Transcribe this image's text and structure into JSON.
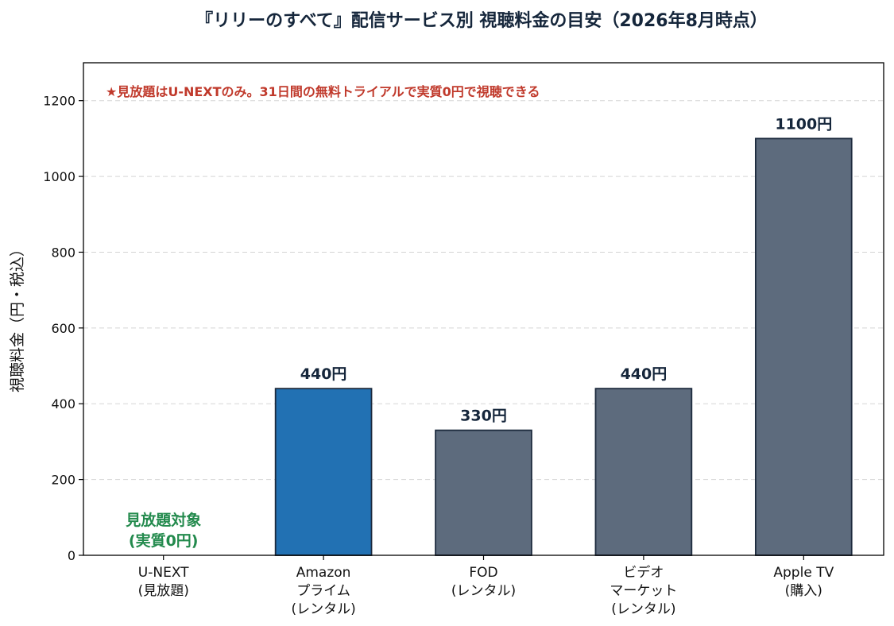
{
  "chart_data": {
    "type": "bar",
    "title": "『リリーのすべて』配信サービス別 視聴料金の目安（2026年8月時点）",
    "ylabel": "視聴料金（円・税込）",
    "xlabel": "",
    "ylim": [
      0,
      1300
    ],
    "yticks": [
      0,
      200,
      400,
      600,
      800,
      1000,
      1200
    ],
    "grid": "y-dashed",
    "note": "★見放題はU-NEXTのみ。31日間の無料トライアルで実質0円で視聴できる",
    "categories": [
      [
        "U-NEXT",
        "(見放題)"
      ],
      [
        "Amazon",
        "プライム",
        "(レンタル)"
      ],
      [
        "FOD",
        "(レンタル)"
      ],
      [
        "ビデオ",
        "マーケット",
        "(レンタル)"
      ],
      [
        "Apple TV",
        "(購入)"
      ]
    ],
    "values": [
      0,
      440,
      330,
      440,
      1100
    ],
    "value_labels": [
      [
        "見放題対象",
        "(実質0円)"
      ],
      [
        "440円"
      ],
      [
        "330円"
      ],
      [
        "440円"
      ],
      [
        "1100円"
      ]
    ],
    "bar_colors": [
      "#5d6b7d",
      "#2271b3",
      "#5d6b7d",
      "#5d6b7d",
      "#5d6b7d"
    ],
    "label_colors": [
      "#238a4d",
      "#15263b",
      "#15263b",
      "#15263b",
      "#15263b"
    ]
  },
  "colors": {
    "title": "#15263b",
    "note": "#c0392b",
    "bar_edge": "#1d2b3e",
    "axis": "#000000",
    "grid": "#d5d5d5"
  }
}
